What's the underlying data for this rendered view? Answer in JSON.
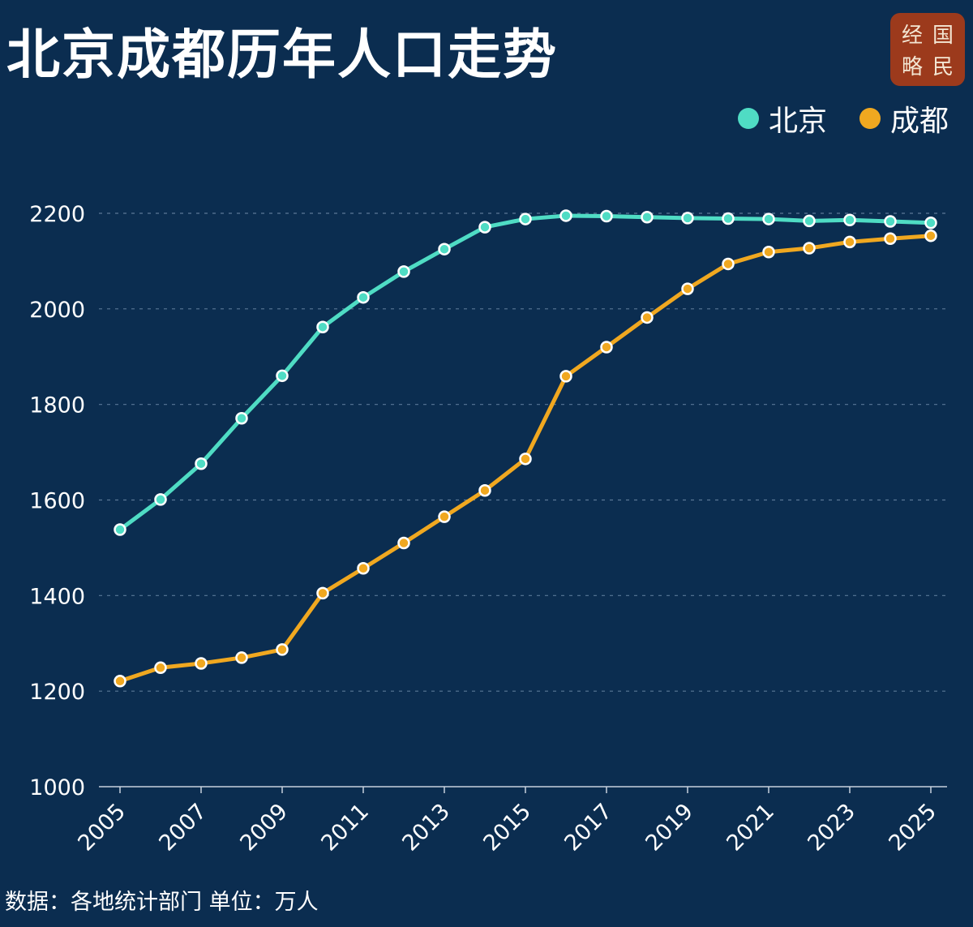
{
  "header": {
    "title": "北京成都历年人口走势"
  },
  "logo": {
    "chars": [
      "经",
      "国",
      "略",
      "民"
    ]
  },
  "legend": [
    {
      "label": "北京",
      "color": "#4fdcc4"
    },
    {
      "label": "成都",
      "color": "#f0a820"
    }
  ],
  "footer": {
    "source": "数据：各地统计部门 单位：万人"
  },
  "chart_data": {
    "type": "line",
    "title": "北京成都历年人口走势",
    "xlabel": "",
    "ylabel": "",
    "ylim": [
      1000,
      2200
    ],
    "yticks": [
      1000,
      1200,
      1400,
      1600,
      1800,
      2000,
      2200
    ],
    "xlim": [
      2005,
      2025
    ],
    "xticks": [
      2005,
      2007,
      2009,
      2011,
      2013,
      2015,
      2017,
      2019,
      2021,
      2023,
      2025
    ],
    "x": [
      2005,
      2006,
      2007,
      2008,
      2009,
      2010,
      2011,
      2012,
      2013,
      2014,
      2015,
      2016,
      2017,
      2018,
      2019,
      2020,
      2021,
      2022,
      2023,
      2024,
      2025
    ],
    "grid": true,
    "legend_position": "top-right",
    "series": [
      {
        "name": "北京",
        "color": "#4fdcc4",
        "values": [
          1538,
          1601,
          1676,
          1771,
          1860,
          1962,
          2024,
          2078,
          2125,
          2171,
          2188,
          2195,
          2194,
          2192,
          2190,
          2189,
          2188,
          2184,
          2186,
          2183,
          2180
        ]
      },
      {
        "name": "成都",
        "color": "#f0a820",
        "values": [
          1221,
          1249,
          1258,
          1270,
          1287,
          1405,
          1457,
          1510,
          1565,
          1620,
          1686,
          1859,
          1920,
          1982,
          2042,
          2094,
          2119,
          2127,
          2140,
          2147,
          2153
        ]
      }
    ]
  }
}
